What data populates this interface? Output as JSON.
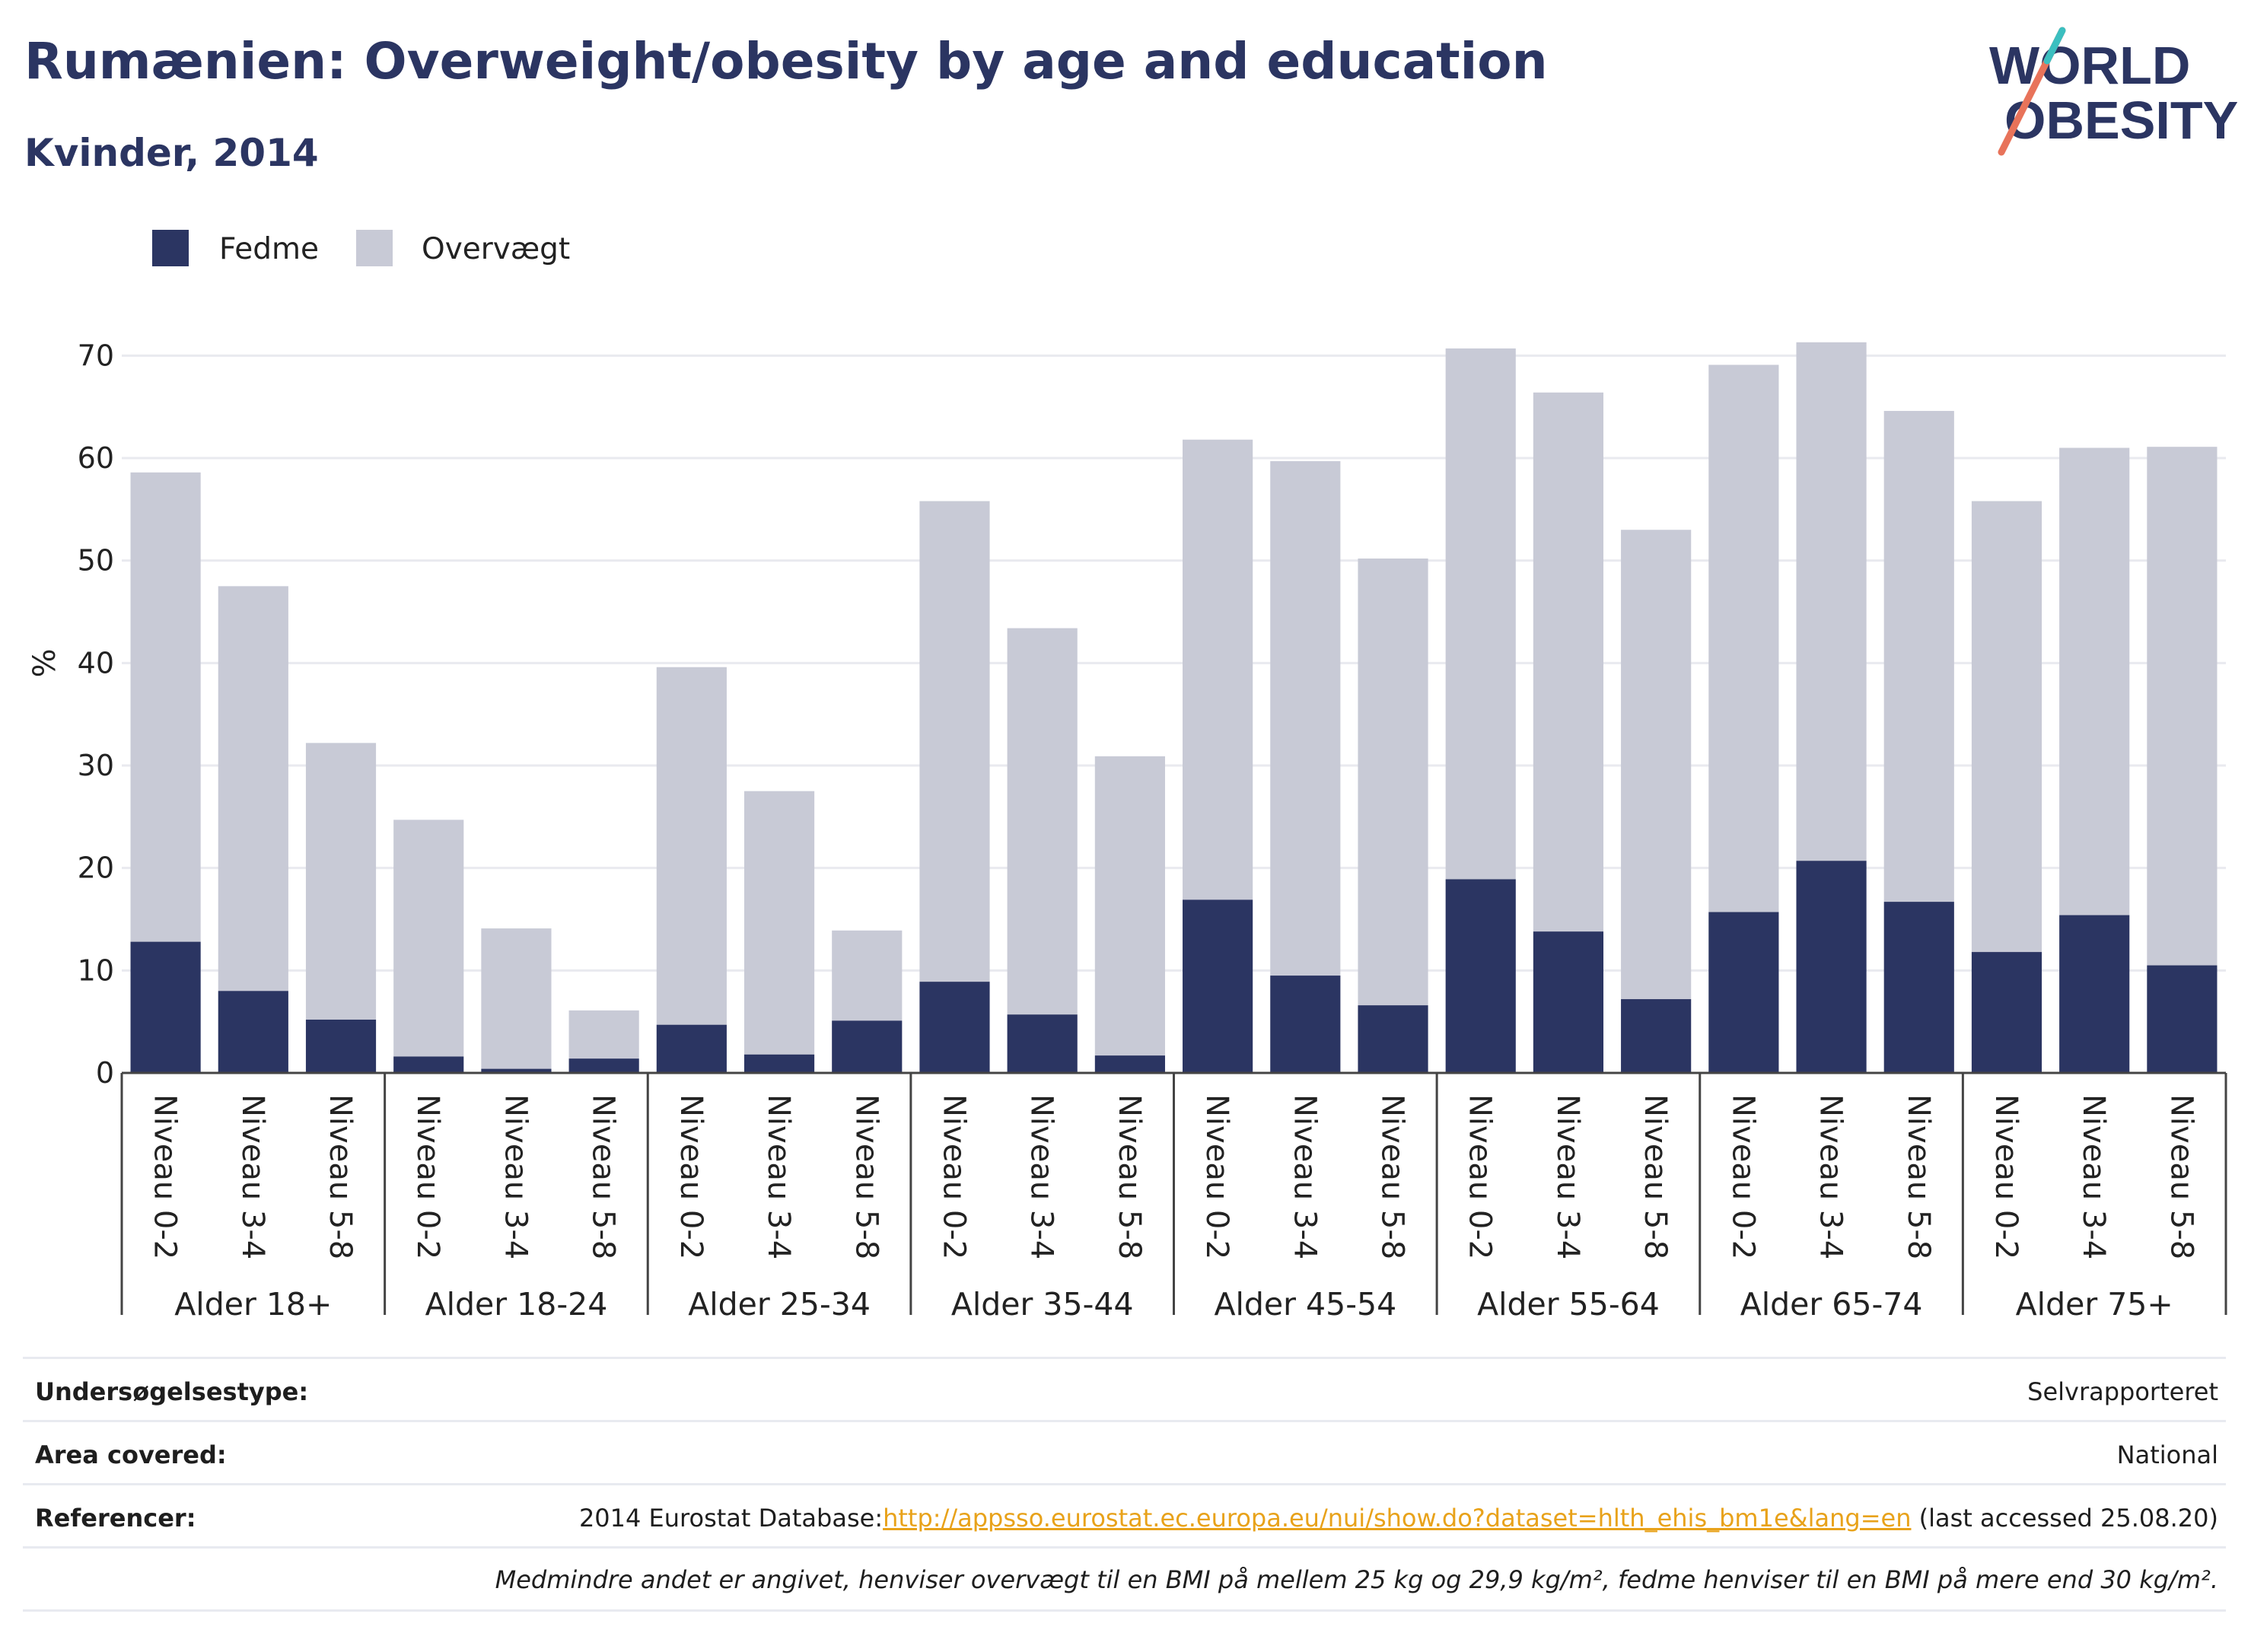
{
  "header": {
    "title": "Rumænien: Overweight/obesity by age and education",
    "subtitle": "Kvinder, 2014"
  },
  "logo": {
    "line1": "WORLD",
    "line2": "OBESITY"
  },
  "colors": {
    "fedme": "#2b3562",
    "overvaegt": "#c8cad6",
    "title": "#2b3562",
    "link": "#e8a21a"
  },
  "chart_data": {
    "type": "bar",
    "stacked": true,
    "ylabel": "%",
    "ylim": [
      0,
      75
    ],
    "yticks": [
      0,
      10,
      20,
      30,
      40,
      50,
      60,
      70
    ],
    "grid": true,
    "legend_position": "top-left",
    "groups": [
      {
        "label": "Alder 18+",
        "categories": [
          "Niveau 0-2",
          "Niveau 3-4",
          "Niveau 5-8"
        ]
      },
      {
        "label": "Alder 18-24",
        "categories": [
          "Niveau 0-2",
          "Niveau 3-4",
          "Niveau 5-8"
        ]
      },
      {
        "label": "Alder 25-34",
        "categories": [
          "Niveau 0-2",
          "Niveau 3-4",
          "Niveau 5-8"
        ]
      },
      {
        "label": "Alder 35-44",
        "categories": [
          "Niveau 0-2",
          "Niveau 3-4",
          "Niveau 5-8"
        ]
      },
      {
        "label": "Alder 45-54",
        "categories": [
          "Niveau 0-2",
          "Niveau 3-4",
          "Niveau 5-8"
        ]
      },
      {
        "label": "Alder 55-64",
        "categories": [
          "Niveau 0-2",
          "Niveau 3-4",
          "Niveau 5-8"
        ]
      },
      {
        "label": "Alder 65-74",
        "categories": [
          "Niveau 0-2",
          "Niveau 3-4",
          "Niveau 5-8"
        ]
      },
      {
        "label": "Alder 75+",
        "categories": [
          "Niveau 0-2",
          "Niveau 3-4",
          "Niveau 5-8"
        ]
      }
    ],
    "series": [
      {
        "name": "Fedme",
        "values": [
          12.8,
          8.0,
          5.2,
          1.6,
          0.4,
          1.4,
          4.7,
          1.8,
          5.1,
          8.9,
          5.7,
          1.7,
          16.9,
          9.5,
          6.6,
          18.9,
          13.8,
          7.2,
          15.7,
          20.7,
          16.7,
          11.8,
          15.4,
          10.5
        ]
      },
      {
        "name": "Overvægt",
        "values": [
          45.8,
          39.5,
          27.0,
          23.1,
          13.7,
          4.7,
          34.9,
          25.7,
          8.8,
          46.9,
          37.7,
          29.2,
          44.9,
          50.2,
          43.6,
          51.8,
          52.6,
          45.8,
          53.4,
          50.6,
          47.9,
          44.0,
          45.6,
          50.6
        ]
      }
    ]
  },
  "info": {
    "survey_label": "Undersøgelsestype:",
    "survey_value": "Selvrapporteret",
    "area_label": "Area covered:",
    "area_value": "National",
    "ref_label": "Referencer:",
    "ref_prefix": "2014 Eurostat Database:",
    "ref_link": "http://appsso.eurostat.ec.europa.eu/nui/show.do?dataset=hlth_ehis_bm1e&lang=en",
    "ref_suffix": " (last accessed 25.08.20)",
    "note": "Medmindre andet er angivet, henviser overvægt til en BMI på mellem 25 kg og 29,9 kg/m², fedme henviser til en BMI på mere end 30 kg/m²."
  }
}
